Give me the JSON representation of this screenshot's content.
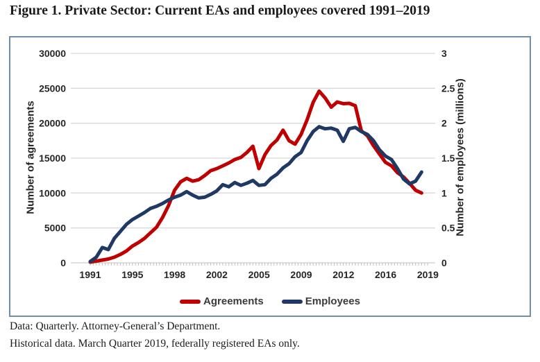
{
  "figure": {
    "title": "Figure 1. Private Sector: Current EAs and employees covered 1991–2019",
    "footer_line1": "Data: Quarterly. Attorney-General’s Department.",
    "footer_line2": "Historical data. March Quarter 2019, federally registered EAs only."
  },
  "chart_data": {
    "type": "line",
    "title": "Figure 1. Private Sector: Current EAs and employees covered 1991–2019",
    "legend_position": "bottom",
    "grid": "horizontal",
    "left_axis": {
      "label": "Number of agreements",
      "min": 0,
      "max": 30000,
      "tick_labels": [
        "0",
        "5000",
        "10000",
        "15000",
        "20000",
        "25000",
        "30000"
      ]
    },
    "right_axis": {
      "label": "Number of employees (millions)",
      "min": 0,
      "max": 3,
      "tick_labels": [
        "0",
        "0.5",
        "1",
        "1.5",
        "2",
        "2.5",
        "3"
      ]
    },
    "x_axis": {
      "tick_labels": [
        "1991",
        "1995",
        "1998",
        "2002",
        "2005",
        "2009",
        "2012",
        "2016",
        "2019"
      ],
      "start_year": 1991.5,
      "end_year": 2019.0,
      "frequency": "quarterly (plotted semi-annually)"
    },
    "x_years": [
      1991.5,
      1992,
      1992.5,
      1993,
      1993.5,
      1994,
      1994.5,
      1995,
      1995.5,
      1996,
      1996.5,
      1997,
      1997.5,
      1998,
      1998.5,
      1999,
      1999.5,
      2000,
      2000.5,
      2001,
      2001.5,
      2002,
      2002.5,
      2003,
      2003.5,
      2004,
      2004.5,
      2005,
      2005.5,
      2006,
      2006.5,
      2007,
      2007.5,
      2008,
      2008.5,
      2009,
      2009.5,
      2010,
      2010.5,
      2011,
      2011.5,
      2012,
      2012.5,
      2013,
      2013.5,
      2014,
      2014.5,
      2015,
      2015.5,
      2016,
      2016.5,
      2017,
      2017.5,
      2018,
      2018.5,
      2019
    ],
    "series": [
      {
        "name": "Agreements",
        "axis": "left",
        "color": "#C00000",
        "values": [
          100,
          250,
          400,
          550,
          800,
          1200,
          1700,
          2400,
          2900,
          3500,
          4300,
          5100,
          6500,
          8200,
          10400,
          11600,
          12100,
          11700,
          11900,
          12500,
          13200,
          13500,
          13900,
          14300,
          14800,
          15100,
          15800,
          16700,
          13500,
          15500,
          16800,
          17600,
          19000,
          17500,
          17000,
          18400,
          20500,
          23000,
          24600,
          23600,
          22300,
          23050,
          22800,
          22850,
          22500,
          18900,
          18200,
          16800,
          15600,
          14400,
          13900,
          12900,
          12300,
          11400,
          10400,
          10000
        ]
      },
      {
        "name": "Employees",
        "axis": "right",
        "color": "#1F3864",
        "values": [
          0.02,
          0.08,
          0.22,
          0.19,
          0.35,
          0.45,
          0.55,
          0.62,
          0.67,
          0.72,
          0.78,
          0.81,
          0.85,
          0.9,
          0.94,
          0.97,
          1.02,
          0.97,
          0.93,
          0.94,
          0.98,
          1.03,
          1.12,
          1.09,
          1.15,
          1.11,
          1.14,
          1.18,
          1.11,
          1.12,
          1.21,
          1.27,
          1.36,
          1.42,
          1.52,
          1.58,
          1.75,
          1.88,
          1.95,
          1.92,
          1.93,
          1.9,
          1.74,
          1.92,
          1.94,
          1.88,
          1.84,
          1.75,
          1.62,
          1.53,
          1.48,
          1.35,
          1.2,
          1.13,
          1.17,
          1.3
        ]
      }
    ],
    "style": {
      "gridline_color": "#D9D9D9",
      "axis_color": "#BFBFBF",
      "line_width": 5
    }
  }
}
